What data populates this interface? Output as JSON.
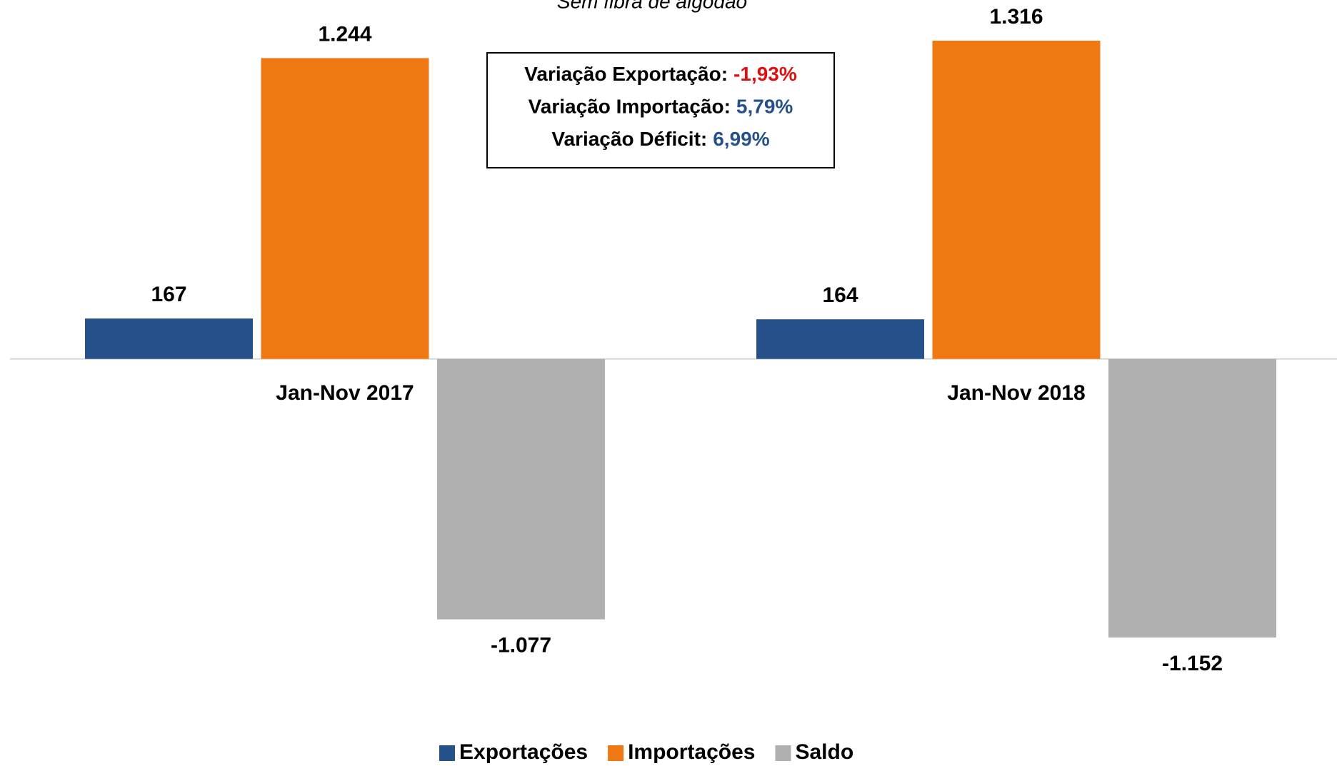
{
  "chart_data": {
    "type": "bar",
    "subtitle": "Sem fibra de algodão",
    "categories": [
      "Jan-Nov 2017",
      "Jan-Nov 2018"
    ],
    "series": [
      {
        "name": "Exportações",
        "color": "#27518a",
        "label_color": "#27518a",
        "values": [
          167,
          164
        ],
        "value_labels": [
          "167",
          "164"
        ]
      },
      {
        "name": "Importações",
        "color": "#f07812",
        "label_color": "#e8740e",
        "values": [
          1244,
          1316
        ],
        "value_labels": [
          "1.244",
          "1.316"
        ]
      },
      {
        "name": "Saldo",
        "color": "#b0b0b0",
        "label_color": "#c00000",
        "values": [
          -1077,
          -1152
        ],
        "value_labels": [
          "-1.077",
          "-1.152"
        ]
      }
    ],
    "annotations": [
      {
        "label": "Variação Exportação:",
        "value": "-1,93%",
        "color": "#e01010"
      },
      {
        "label": "Variação Importação:",
        "value": "5,79%",
        "color": "#27518a"
      },
      {
        "label": "Variação Déficit:",
        "value": "6,99%",
        "color": "#27518a"
      }
    ],
    "legend": "bottom"
  }
}
